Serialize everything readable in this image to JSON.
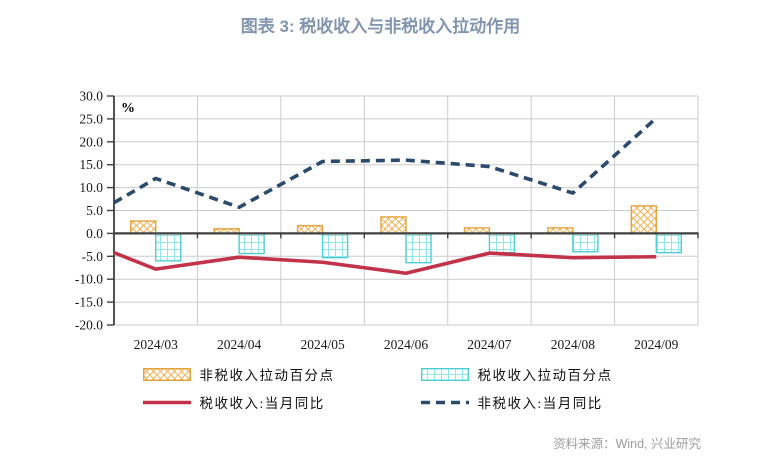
{
  "title": "图表 3: 税收收入与非税收入拉动作用",
  "source": "资料来源：Wind, 兴业研究",
  "chart_data": {
    "type": "combo",
    "subtype": "bars-and-lines",
    "unit_label": "%",
    "categories": [
      "2024/03",
      "2024/04",
      "2024/05",
      "2024/06",
      "2024/07",
      "2024/08",
      "2024/09"
    ],
    "y_axis": {
      "min": -20,
      "max": 30,
      "step": 5,
      "tick_labels": [
        "30.0",
        "25.0",
        "20.0",
        "15.0",
        "10.0",
        "5.0",
        "0.0",
        "-5.0",
        "-10.0",
        "-15.0",
        "-20.0"
      ]
    },
    "grid": "on",
    "legend_position": "bottom",
    "bar_series": [
      {
        "name": "非税收入拉动百分点",
        "style": "orange-crosshatch",
        "border_color": "#E3A23D",
        "hatch_color": "#F0B254",
        "values": [
          2.7,
          1.0,
          1.7,
          3.6,
          1.2,
          1.2,
          6.0
        ]
      },
      {
        "name": "税收收入拉动百分点",
        "style": "teal-grid",
        "border_color": "#4ECED3",
        "hatch_color": "#90E6E8",
        "values": [
          -6.0,
          -4.4,
          -5.3,
          -6.4,
          -4.2,
          -4.0,
          -4.2
        ]
      }
    ],
    "line_series": [
      {
        "name": "税收收入:当月同比",
        "style": "solid",
        "color": "#C23349",
        "start_at_axis_value": -4.2,
        "values": [
          -7.8,
          -5.2,
          -6.3,
          -8.7,
          -4.3,
          -5.3,
          -5.1
        ]
      },
      {
        "name": "非税收入:当月同比",
        "style": "dashed",
        "color": "#2C4A6B",
        "start_at_axis_value": 6.7,
        "values": [
          12.0,
          5.7,
          15.7,
          16.0,
          14.6,
          8.8,
          25.2
        ]
      }
    ],
    "colors": {
      "grid_line": "#CBCBCB",
      "axis_line": "#404040",
      "tick_text": "#1A1A1A",
      "title_text": "#8295B0",
      "source_text": "#9D9D9D"
    }
  }
}
